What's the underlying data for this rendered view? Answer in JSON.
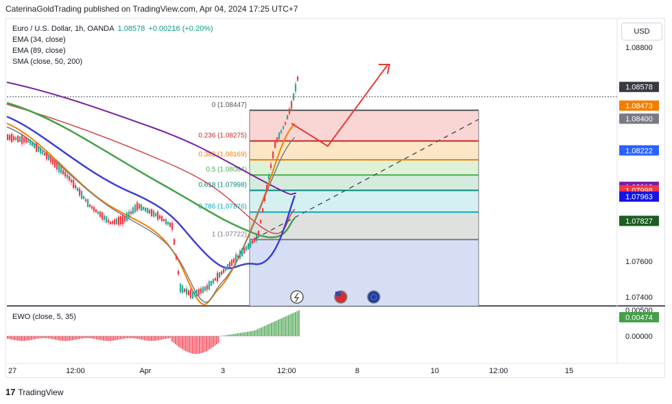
{
  "header": {
    "published": "CaterinaGoldTrading published on TradingView.com, Apr 04, 2024 17:25 UTC+7"
  },
  "legend": {
    "symbol": "Euro / U.S. Dollar, 1h, OANDA",
    "price": "1.08578",
    "change": "+0.00216 (+0.20%)",
    "ema1": "EMA (34, close)",
    "ema2": "EMA (89, close)",
    "sma": "SMA (close, 50, 200)"
  },
  "currency_button": "USD",
  "ewo_label": "EWO (close, 5, 35)",
  "footer": {
    "logo_mark": "17",
    "brand": "TradingView"
  },
  "chart_data": {
    "type": "line",
    "title": "Euro / U.S. Dollar, 1h, OANDA",
    "ylim": [
      1.0735,
      1.0895
    ],
    "y_ticks": [
      "1.08800",
      "1.07600",
      "1.07400"
    ],
    "x_ticks": [
      "27",
      "12:00",
      "Apr",
      "3",
      "12:00",
      "8",
      "10",
      "12:00",
      "15"
    ],
    "price_badges": [
      {
        "label": "1.08578",
        "value": 1.08578,
        "color": "#363a45"
      },
      {
        "label": "1.08473",
        "value": 1.08473,
        "color": "#f57c00"
      },
      {
        "label": "1.08400",
        "value": 1.084,
        "color": "#787b86"
      },
      {
        "label": "1.08222",
        "value": 1.08222,
        "color": "#2962ff"
      },
      {
        "label": "1.08018",
        "value": 1.08018,
        "color": "#7b1fa2"
      },
      {
        "label": "1.07998",
        "value": 1.07998,
        "color": "#f23645"
      },
      {
        "label": "1.07963",
        "value": 1.07963,
        "color": "#1414e6"
      },
      {
        "label": "1.07827",
        "value": 1.07827,
        "color": "#1b5e20"
      }
    ],
    "fib_levels": [
      {
        "ratio": "0",
        "price": "1.08447",
        "value": 1.08447,
        "color": "#555555",
        "fill": "#f8d0cf"
      },
      {
        "ratio": "0.236",
        "price": "1.08275",
        "value": 1.08275,
        "color": "#c62828",
        "fill": "#fde3bf"
      },
      {
        "ratio": "0.382",
        "price": "1.08169",
        "value": 1.08169,
        "color": "#f57c00",
        "fill": "#dcefd2"
      },
      {
        "ratio": "0.5",
        "price": "1.08084",
        "value": 1.08084,
        "color": "#4caf50",
        "fill": "#cfe9da"
      },
      {
        "ratio": "0.618",
        "price": "1.07998",
        "value": 1.07998,
        "color": "#00897b",
        "fill": "#cfeef0"
      },
      {
        "ratio": "0.786",
        "price": "1.07876",
        "value": 1.07876,
        "color": "#00acc1",
        "fill": "#dcdedb"
      },
      {
        "ratio": "1",
        "price": "1.07722",
        "value": 1.07722,
        "color": "#787b86",
        "fill": "#d1daf5"
      }
    ],
    "fib_bottom_value": 1.0734,
    "ewo": {
      "y_ticks": [
        "0.00000"
      ],
      "badge": "0.00474",
      "top_tick": "0.00500"
    }
  }
}
